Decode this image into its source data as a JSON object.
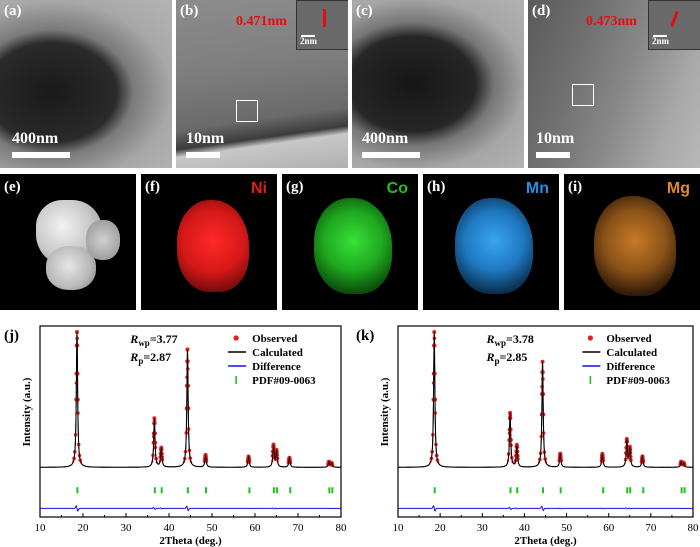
{
  "tem_panels": [
    {
      "label": "(a)",
      "scale": "400nm"
    },
    {
      "label": "(b)",
      "scale": "10nm",
      "dspacing": "0.471nm",
      "inset_scale": "2nm"
    },
    {
      "label": "(c)",
      "scale": "400nm"
    },
    {
      "label": "(d)",
      "scale": "10nm",
      "dspacing": "0.473nm",
      "inset_scale": "2nm"
    }
  ],
  "eds_panels": [
    {
      "label": "(e)",
      "element": ""
    },
    {
      "label": "(f)",
      "element": "Ni",
      "color": "#e02020"
    },
    {
      "label": "(g)",
      "element": "Co",
      "color": "#20c020"
    },
    {
      "label": "(h)",
      "element": "Mn",
      "color": "#2c8ee0"
    },
    {
      "label": "(i)",
      "element": "Mg",
      "color": "#e08a30"
    }
  ],
  "chart_data": [
    {
      "type": "line",
      "panel": "(j)",
      "xlabel": "2Theta (deg.)",
      "ylabel": "Intensity (a.u.)",
      "xlim": [
        10,
        80
      ],
      "xticks": [
        10,
        20,
        30,
        40,
        50,
        60,
        70,
        80
      ],
      "stats": {
        "Rwp": "3.77",
        "Rp": "2.87"
      },
      "legend": [
        "Observed",
        "Calculated",
        "Difference",
        "PDF#09-0063"
      ],
      "legend_position": "top-right",
      "colors": {
        "observed": "#e02020",
        "calculated": "#000000",
        "difference": "#1010e0",
        "pdf": "#20c020"
      },
      "peaks": [
        {
          "x": 18.6,
          "rel": 1.0
        },
        {
          "x": 36.6,
          "rel": 0.36
        },
        {
          "x": 38.2,
          "rel": 0.14
        },
        {
          "x": 44.3,
          "rel": 0.87
        },
        {
          "x": 48.5,
          "rel": 0.09
        },
        {
          "x": 58.5,
          "rel": 0.08
        },
        {
          "x": 64.3,
          "rel": 0.16
        },
        {
          "x": 65.0,
          "rel": 0.12
        },
        {
          "x": 68.0,
          "rel": 0.07
        },
        {
          "x": 77.2,
          "rel": 0.04
        },
        {
          "x": 77.8,
          "rel": 0.03
        }
      ],
      "pdf_positions": [
        18.7,
        36.7,
        38.3,
        44.4,
        48.6,
        58.7,
        64.4,
        65.1,
        68.2,
        77.3,
        78.0
      ]
    },
    {
      "type": "line",
      "panel": "(k)",
      "xlabel": "2Theta (deg.)",
      "ylabel": "Intensity (a.u.)",
      "xlim": [
        10,
        80
      ],
      "xticks": [
        10,
        20,
        30,
        40,
        50,
        60,
        70,
        80
      ],
      "stats": {
        "Rwp": "3.78",
        "Rp": "2.85"
      },
      "legend": [
        "Observed",
        "Calculated",
        "Difference",
        "PDF#09-0063"
      ],
      "legend_position": "top-right",
      "colors": {
        "observed": "#e02020",
        "calculated": "#000000",
        "difference": "#1010e0",
        "pdf": "#20c020"
      },
      "peaks": [
        {
          "x": 18.6,
          "rel": 1.0
        },
        {
          "x": 36.6,
          "rel": 0.4
        },
        {
          "x": 38.2,
          "rel": 0.16
        },
        {
          "x": 44.3,
          "rel": 0.78
        },
        {
          "x": 48.5,
          "rel": 0.1
        },
        {
          "x": 58.5,
          "rel": 0.1
        },
        {
          "x": 64.3,
          "rel": 0.2
        },
        {
          "x": 65.0,
          "rel": 0.14
        },
        {
          "x": 68.0,
          "rel": 0.08
        },
        {
          "x": 77.2,
          "rel": 0.04
        },
        {
          "x": 77.8,
          "rel": 0.03
        }
      ],
      "pdf_positions": [
        18.7,
        36.7,
        38.3,
        44.4,
        48.6,
        58.7,
        64.4,
        65.1,
        68.2,
        77.3,
        78.0
      ]
    }
  ]
}
